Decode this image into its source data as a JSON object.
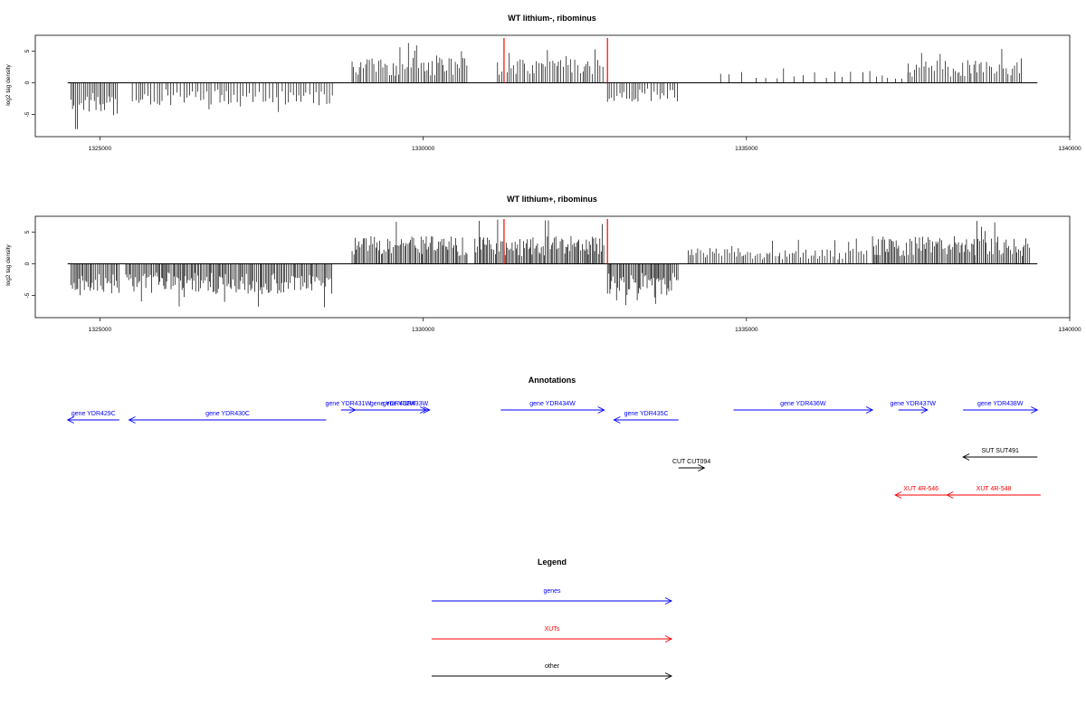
{
  "chart_data": [
    {
      "type": "bar",
      "title": "WT lithium-, ribominus",
      "ylabel": "log2 tag density",
      "xlim": [
        1324000,
        1340000
      ],
      "ylim": [
        -8.5,
        7.5
      ],
      "xticks": [
        1325000,
        1330000,
        1335000,
        1340000
      ],
      "xtick_labels": [
        "1325000",
        "1330000",
        "1335000",
        "1340000"
      ],
      "yticks": [
        -5,
        0,
        5
      ],
      "ytick_labels": [
        "-5",
        "0",
        "5"
      ],
      "baseline": {
        "from": 1324500,
        "to": 1339500
      },
      "highlight_lines": [
        1331250,
        1332850
      ],
      "highlight_color": "#ff0000",
      "segments": [
        {
          "start": 1324550,
          "end": 1325300,
          "sign": -1,
          "amp": 4.5,
          "step": 25
        },
        {
          "start": 1325500,
          "end": 1328600,
          "sign": -1,
          "amp": 3.0,
          "step": 45
        },
        {
          "start": 1328900,
          "end": 1330700,
          "sign": 1,
          "amp": 3.2,
          "step": 30
        },
        {
          "start": 1331150,
          "end": 1332800,
          "sign": 1,
          "amp": 3.0,
          "step": 35
        },
        {
          "start": 1332850,
          "end": 1333950,
          "sign": -1,
          "amp": 2.5,
          "step": 40
        },
        {
          "start": 1334600,
          "end": 1336700,
          "sign": 1,
          "amp": 1.5,
          "step": 160
        },
        {
          "start": 1336800,
          "end": 1337500,
          "sign": 1,
          "amp": 1.8,
          "step": 90
        },
        {
          "start": 1337500,
          "end": 1339300,
          "sign": 1,
          "amp": 2.8,
          "step": 35
        }
      ]
    },
    {
      "type": "bar",
      "title": "WT lithium+, ribominus",
      "ylabel": "log2 tag density",
      "xlim": [
        1324000,
        1340000
      ],
      "ylim": [
        -8.5,
        7.5
      ],
      "xticks": [
        1325000,
        1330000,
        1335000,
        1340000
      ],
      "xtick_labels": [
        "1325000",
        "1330000",
        "1335000",
        "1340000"
      ],
      "yticks": [
        -5,
        0,
        5
      ],
      "ytick_labels": [
        "-5",
        "0",
        "5"
      ],
      "baseline": {
        "from": 1324500,
        "to": 1339500
      },
      "highlight_lines": [
        1331250,
        1332850
      ],
      "highlight_color": "#ff0000",
      "segments": [
        {
          "start": 1324550,
          "end": 1325300,
          "sign": -1,
          "amp": 4.0,
          "step": 22
        },
        {
          "start": 1325400,
          "end": 1328600,
          "sign": -1,
          "amp": 3.8,
          "step": 22
        },
        {
          "start": 1328900,
          "end": 1330700,
          "sign": 1,
          "amp": 3.5,
          "step": 22
        },
        {
          "start": 1330800,
          "end": 1332800,
          "sign": 1,
          "amp": 3.5,
          "step": 22
        },
        {
          "start": 1332850,
          "end": 1333950,
          "sign": -1,
          "amp": 4.0,
          "step": 20
        },
        {
          "start": 1334100,
          "end": 1336900,
          "sign": 1,
          "amp": 2.0,
          "step": 35
        },
        {
          "start": 1336950,
          "end": 1339400,
          "sign": 1,
          "amp": 3.5,
          "step": 22
        }
      ]
    }
  ],
  "annotations": {
    "title": "Annotations",
    "colors": {
      "gene": "#0000ff",
      "xut": "#ff0000",
      "other": "#000000"
    },
    "features": [
      {
        "label": "gene YDR429C",
        "type": "gene",
        "start": 1324500,
        "end": 1325300,
        "strand": "-",
        "row": 1
      },
      {
        "label": "gene YDR430C",
        "type": "gene",
        "start": 1325450,
        "end": 1328500,
        "strand": "-",
        "row": 1
      },
      {
        "label": "gene YDR431W",
        "type": "gene",
        "start": 1328730,
        "end": 1328950,
        "strand": "+",
        "row": 0
      },
      {
        "label": "gene YDR432W",
        "type": "gene",
        "start": 1328960,
        "end": 1330100,
        "strand": "+",
        "row": 0
      },
      {
        "label": "gene YDR433W",
        "type": "gene",
        "start": 1329400,
        "end": 1330050,
        "strand": "+",
        "row": 0
      },
      {
        "label": "gene YDR434W",
        "type": "gene",
        "start": 1331200,
        "end": 1332800,
        "strand": "+",
        "row": 0
      },
      {
        "label": "gene YDR435C",
        "type": "gene",
        "start": 1332950,
        "end": 1333950,
        "strand": "-",
        "row": 1
      },
      {
        "label": "gene YDR436W",
        "type": "gene",
        "start": 1334800,
        "end": 1336950,
        "strand": "+",
        "row": 0
      },
      {
        "label": "gene YDR437W",
        "type": "gene",
        "start": 1337350,
        "end": 1337800,
        "strand": "+",
        "row": 0
      },
      {
        "label": "gene YDR438W",
        "type": "gene",
        "start": 1338350,
        "end": 1339500,
        "strand": "+",
        "row": 0
      },
      {
        "label": "CUT CUT094",
        "type": "other",
        "start": 1333950,
        "end": 1334350,
        "strand": "+",
        "row": 2
      },
      {
        "label": "SUT SUT491",
        "type": "other",
        "start": 1338350,
        "end": 1339500,
        "strand": "-",
        "row": 3
      },
      {
        "label": "XUT 4R-546",
        "type": "xut",
        "start": 1337300,
        "end": 1338100,
        "strand": "-",
        "row": 4
      },
      {
        "label": "XUT 4R-548",
        "type": "xut",
        "start": 1338100,
        "end": 1339550,
        "strand": "-",
        "row": 4
      }
    ]
  },
  "legend": {
    "title": "Legend",
    "items": [
      {
        "label": "genes",
        "color": "#0000ff"
      },
      {
        "label": "XUTs",
        "color": "#ff0000"
      },
      {
        "label": "other",
        "color": "#000000"
      }
    ]
  }
}
